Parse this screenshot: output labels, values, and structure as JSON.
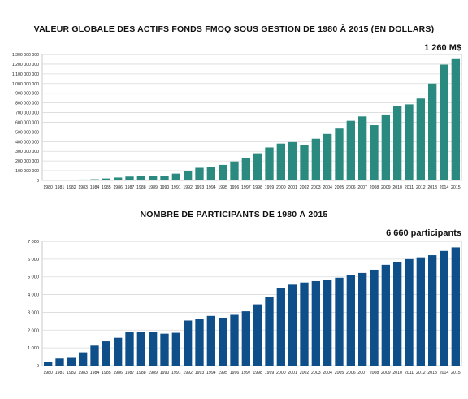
{
  "chart_data": [
    {
      "type": "bar",
      "title": "VALEUR GLOBALE DES ACTIFS FONDS FMOQ SOUS GESTION DE 1980 À 2015 (EN DOLLARS)",
      "annotation": "1 260 M$",
      "color": "#2a8a80",
      "ylim": [
        0,
        1300000000
      ],
      "yticks": [
        "0",
        "100 000 000",
        "200 000 000",
        "300 000 000",
        "400 000 000",
        "500 000 000",
        "600 000 000",
        "700 000 000",
        "800 000 000",
        "900 000 000",
        "1 000 000 000",
        "1 100 000 000",
        "1 200 000 000",
        "1 300 000 000"
      ],
      "ytick_values": [
        0,
        100000000,
        200000000,
        300000000,
        400000000,
        500000000,
        600000000,
        700000000,
        800000000,
        900000000,
        1000000000,
        1100000000,
        1200000000,
        1300000000
      ],
      "grid": true,
      "categories": [
        "1980",
        "1981",
        "1982",
        "1983",
        "1984",
        "1985",
        "1986",
        "1987",
        "1988",
        "1989",
        "1990",
        "1991",
        "1992",
        "1993",
        "1994",
        "1995",
        "1996",
        "1997",
        "1998",
        "1999",
        "2000",
        "2001",
        "2002",
        "2003",
        "2004",
        "2005",
        "2006",
        "2007",
        "2008",
        "2009",
        "2010",
        "2011",
        "2012",
        "2013",
        "2014",
        "2015"
      ],
      "values": [
        2000000,
        4000000,
        6000000,
        9000000,
        12000000,
        20000000,
        30000000,
        40000000,
        45000000,
        45000000,
        47000000,
        70000000,
        95000000,
        130000000,
        140000000,
        160000000,
        195000000,
        235000000,
        280000000,
        340000000,
        380000000,
        395000000,
        365000000,
        430000000,
        480000000,
        535000000,
        615000000,
        660000000,
        570000000,
        680000000,
        770000000,
        785000000,
        845000000,
        1000000000,
        1195000000,
        1260000000
      ]
    },
    {
      "type": "bar",
      "title": "NOMBRE DE PARTICIPANTS DE 1980 À 2015",
      "annotation": "6 660 participants",
      "color": "#0e4f8a",
      "ylim": [
        0,
        7000
      ],
      "yticks": [
        "0",
        "1 000",
        "2 000",
        "3 000",
        "4 000",
        "5 000",
        "6 000",
        "7 000"
      ],
      "ytick_values": [
        0,
        1000,
        2000,
        3000,
        4000,
        5000,
        6000,
        7000
      ],
      "grid": true,
      "categories": [
        "1980",
        "1981",
        "1982",
        "1983",
        "1984",
        "1985",
        "1986",
        "1987",
        "1988",
        "1989",
        "1990",
        "1991",
        "1992",
        "1993",
        "1994",
        "1995",
        "1996",
        "1997",
        "1998",
        "1999",
        "2000",
        "2001",
        "2002",
        "2003",
        "2004",
        "2005",
        "2006",
        "2007",
        "2008",
        "2009",
        "2010",
        "2011",
        "2012",
        "2013",
        "2014",
        "2015"
      ],
      "values": [
        200,
        400,
        480,
        750,
        1130,
        1370,
        1570,
        1880,
        1920,
        1880,
        1800,
        1850,
        2540,
        2650,
        2800,
        2700,
        2860,
        3060,
        3450,
        3880,
        4350,
        4560,
        4680,
        4760,
        4820,
        4950,
        5100,
        5220,
        5400,
        5680,
        5820,
        6000,
        6100,
        6220,
        6460,
        6660
      ]
    }
  ]
}
